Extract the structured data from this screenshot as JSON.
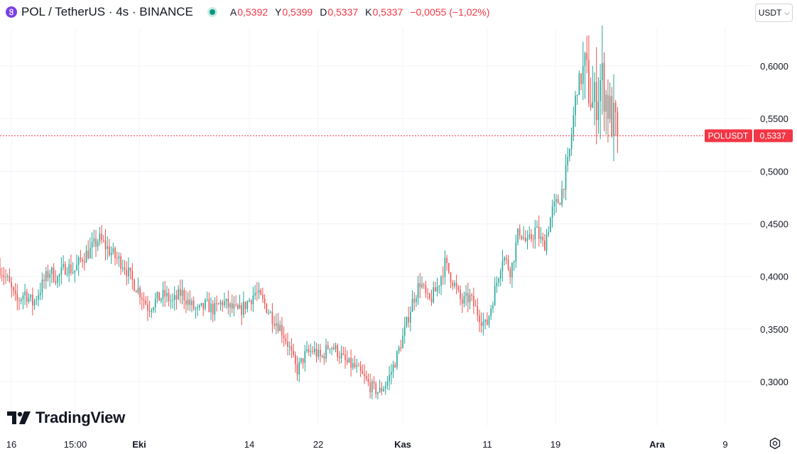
{
  "header": {
    "symbol_title": "POL / TetherUS · 4s · BINANCE",
    "ohlc": {
      "open_label": "A",
      "open_value": "0,5392",
      "high_label": "Y",
      "high_value": "0,5399",
      "low_label": "D",
      "low_value": "0,5337",
      "close_label": "K",
      "close_value": "0,5337",
      "change": "−0,0055 (−1,02%)"
    }
  },
  "currency_selector": {
    "label": "USDT"
  },
  "price_tag": {
    "symbol": "POLUSDT",
    "value": "0,5337"
  },
  "logo": {
    "text": "TradingView"
  },
  "icons": {
    "coin": "polygon-coin-icon",
    "status": "market-open-dot-icon",
    "settings": "settings-icon"
  },
  "colors": {
    "up": "#26a69a",
    "down": "#ef5350",
    "price_line": "#f23645",
    "grid": "#f0f3fa"
  },
  "chart_data": {
    "type": "candlestick",
    "y_axis": {
      "ticks": [
        0.3,
        0.35,
        0.4,
        0.45,
        0.5,
        0.55,
        0.6
      ],
      "tick_labels": [
        "0,3000",
        "0,3500",
        "0,4000",
        "0,4500",
        "0,5000",
        "0,5500",
        "0,6000"
      ],
      "range": [
        0.275,
        0.625
      ]
    },
    "x_axis": {
      "tick_labels": [
        "16",
        "15:00",
        "Eki",
        "14",
        "22",
        "Kas",
        "11",
        "19",
        "Ara",
        "9"
      ],
      "bold_labels": [
        "Eki",
        "Kas",
        "Ara"
      ]
    },
    "last_price": 0.5337,
    "price_path": [
      [
        "16",
        0.408
      ],
      [
        "16",
        0.395
      ],
      [
        "16",
        0.375
      ],
      [
        "16",
        0.385
      ],
      [
        "16",
        0.374
      ],
      [
        "15:00",
        0.39
      ],
      [
        "15:00",
        0.405
      ],
      [
        "15:00",
        0.398
      ],
      [
        "15:00",
        0.41
      ],
      [
        "15:00",
        0.405
      ],
      [
        "15:00",
        0.418
      ],
      [
        "15:00",
        0.425
      ],
      [
        "15:00",
        0.436
      ],
      [
        "15:00",
        0.427
      ],
      [
        "15:00",
        0.418
      ],
      [
        "15:00",
        0.412
      ],
      [
        "15:00",
        0.396
      ],
      [
        "Eki",
        0.385
      ],
      [
        "Eki",
        0.37
      ],
      [
        "Eki",
        0.378
      ],
      [
        "Eki",
        0.382
      ],
      [
        "Eki",
        0.375
      ],
      [
        "Eki",
        0.385
      ],
      [
        "14",
        0.374
      ],
      [
        "14",
        0.366
      ],
      [
        "14",
        0.373
      ],
      [
        "14",
        0.368
      ],
      [
        "14",
        0.376
      ],
      [
        "14",
        0.37
      ],
      [
        "14",
        0.366
      ],
      [
        "14",
        0.375
      ],
      [
        "14",
        0.385
      ],
      [
        "14",
        0.375
      ],
      [
        "14",
        0.362
      ],
      [
        "22",
        0.352
      ],
      [
        "22",
        0.335
      ],
      [
        "22",
        0.31
      ],
      [
        "22",
        0.325
      ],
      [
        "22",
        0.33
      ],
      [
        "22",
        0.322
      ],
      [
        "22",
        0.336
      ],
      [
        "22",
        0.328
      ],
      [
        "22",
        0.318
      ],
      [
        "22",
        0.314
      ],
      [
        "Kas",
        0.305
      ],
      [
        "Kas",
        0.295
      ],
      [
        "Kas",
        0.29
      ],
      [
        "Kas",
        0.3
      ],
      [
        "Kas",
        0.32
      ],
      [
        "Kas",
        0.345
      ],
      [
        "Kas",
        0.375
      ],
      [
        "Kas",
        0.395
      ],
      [
        "Kas",
        0.375
      ],
      [
        "11",
        0.388
      ],
      [
        "11",
        0.412
      ],
      [
        "11",
        0.395
      ],
      [
        "11",
        0.375
      ],
      [
        "11",
        0.38
      ],
      [
        "11",
        0.365
      ],
      [
        "11",
        0.352
      ],
      [
        "11",
        0.385
      ],
      [
        "11",
        0.42
      ],
      [
        "11",
        0.405
      ],
      [
        "19",
        0.445
      ],
      [
        "19",
        0.43
      ],
      [
        "19",
        0.445
      ],
      [
        "19",
        0.428
      ],
      [
        "19",
        0.462
      ],
      [
        "19",
        0.475
      ],
      [
        "19",
        0.51
      ],
      [
        "19",
        0.58
      ],
      [
        "19",
        0.595
      ],
      [
        "19",
        0.56
      ],
      [
        "19",
        0.59
      ],
      [
        "19",
        0.555
      ],
      [
        "19",
        0.5337
      ]
    ]
  }
}
